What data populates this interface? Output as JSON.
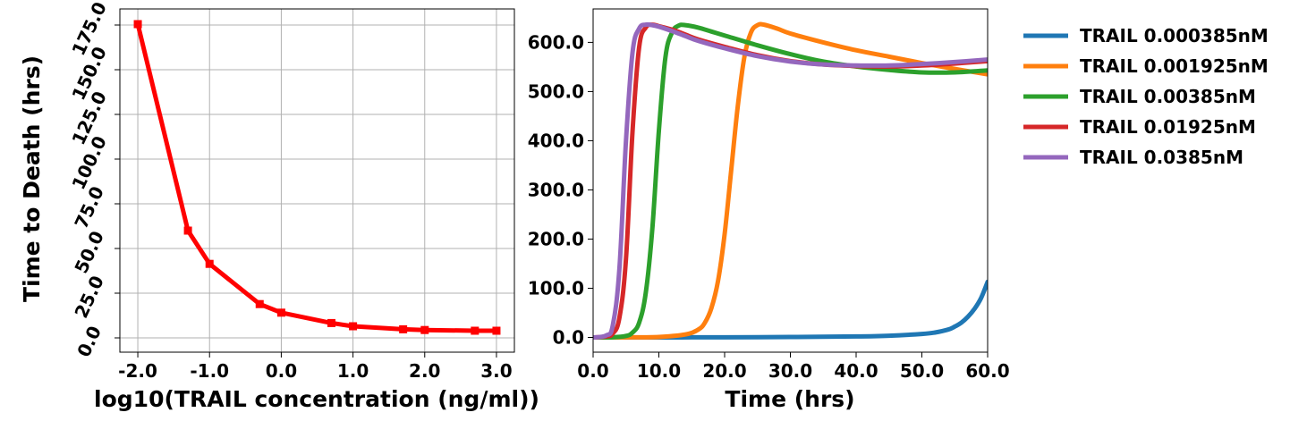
{
  "chart_data": [
    {
      "type": "line",
      "title": "",
      "xlabel": "log10(TRAIL concentration (ng/ml))",
      "ylabel": "Time to Death (hrs)",
      "xlim": [
        -2.25,
        3.25
      ],
      "ylim": [
        -8.0,
        184.0
      ],
      "xticks": [
        -2.0,
        -1.0,
        0.0,
        1.0,
        2.0,
        3.0
      ],
      "xtick_labels": [
        "-2.0",
        "-1.0",
        "0.0",
        "1.0",
        "2.0",
        "3.0"
      ],
      "yticks": [
        0,
        25,
        50,
        75,
        100,
        125,
        150,
        175
      ],
      "ytick_labels": [
        "0.0",
        "25.0",
        "50.0",
        "75.0",
        "100.0",
        "125.0",
        "150.0",
        "175.0"
      ],
      "grid": true,
      "series": [
        {
          "name": "",
          "color": "#ff0000",
          "marker": "square",
          "x": [
            -2.0,
            -1.301,
            -1.0,
            -0.301,
            0.0,
            0.699,
            1.0,
            1.699,
            2.0,
            2.699,
            3.0
          ],
          "y": [
            175.5,
            60.0,
            41.4,
            18.9,
            14.1,
            8.3,
            6.5,
            4.8,
            4.4,
            4.0,
            4.0
          ]
        }
      ]
    },
    {
      "type": "line",
      "title": "",
      "xlabel": "Time (hrs)",
      "ylabel": "",
      "xlim": [
        0,
        60
      ],
      "ylim": [
        -30.0,
        668.0
      ],
      "xticks": [
        0,
        10,
        20,
        30,
        40,
        50,
        60
      ],
      "xtick_labels": [
        "0.0",
        "10.0",
        "20.0",
        "30.0",
        "40.0",
        "50.0",
        "60.0"
      ],
      "yticks": [
        0,
        100,
        200,
        300,
        400,
        500,
        600
      ],
      "ytick_labels": [
        "0.0",
        "100.0",
        "200.0",
        "300.0",
        "400.0",
        "500.0",
        "600.0"
      ],
      "grid": false,
      "legend_position": "outside-right",
      "series": [
        {
          "name": "TRAIL 0.000385nM",
          "color": "#1f77b4",
          "x": [
            0,
            10,
            20,
            30,
            40,
            45,
            50,
            52,
            54,
            55,
            56,
            57,
            58,
            59,
            60
          ],
          "y": [
            0,
            0,
            0.3,
            0.8,
            2,
            3.5,
            7,
            10,
            16,
            22,
            30,
            42,
            58,
            80,
            113
          ]
        },
        {
          "name": "TRAIL 0.001925nM",
          "color": "#ff7f0e",
          "x": [
            0,
            5,
            10,
            14,
            16,
            17,
            18,
            19,
            20,
            21,
            22,
            23,
            24,
            25,
            26,
            28,
            30,
            35,
            40,
            45,
            50,
            55,
            60
          ],
          "y": [
            0,
            0.2,
            1,
            6,
            16,
            30,
            60,
            115,
            210,
            340,
            470,
            570,
            620,
            635,
            636,
            628,
            618,
            600,
            584,
            571,
            558,
            546,
            535
          ]
        },
        {
          "name": "TRAIL 0.00385nM",
          "color": "#2ca02c",
          "x": [
            0,
            3,
            5,
            6,
            7,
            8,
            9,
            10,
            11,
            12,
            13,
            14,
            16,
            18,
            20,
            25,
            30,
            35,
            40,
            45,
            50,
            55,
            60
          ],
          "y": [
            0,
            0.3,
            3,
            10,
            30,
            90,
            220,
            420,
            570,
            620,
            634,
            635,
            630,
            622,
            614,
            594,
            576,
            561,
            551,
            544,
            539,
            539,
            543
          ]
        },
        {
          "name": "TRAIL 0.01925nM",
          "color": "#d62728",
          "x": [
            0,
            2,
            3,
            4,
            5,
            6,
            7,
            8,
            9,
            10,
            12,
            14,
            16,
            20,
            25,
            30,
            35,
            40,
            45,
            50,
            55,
            60
          ],
          "y": [
            0,
            2,
            8,
            40,
            160,
            420,
            590,
            630,
            636,
            633,
            626,
            616,
            606,
            591,
            574,
            562,
            555,
            552,
            551,
            553,
            557,
            562
          ]
        },
        {
          "name": "TRAIL 0.0385nM",
          "color": "#9467bd",
          "x": [
            0,
            2,
            3,
            4,
            5,
            6,
            7,
            8,
            9,
            10,
            12,
            14,
            16,
            20,
            25,
            30,
            35,
            40,
            45,
            50,
            55,
            60
          ],
          "y": [
            0,
            4,
            25,
            140,
            400,
            580,
            628,
            636,
            635,
            632,
            623,
            613,
            603,
            588,
            572,
            561,
            555,
            553,
            553,
            556,
            560,
            565
          ]
        }
      ]
    }
  ]
}
